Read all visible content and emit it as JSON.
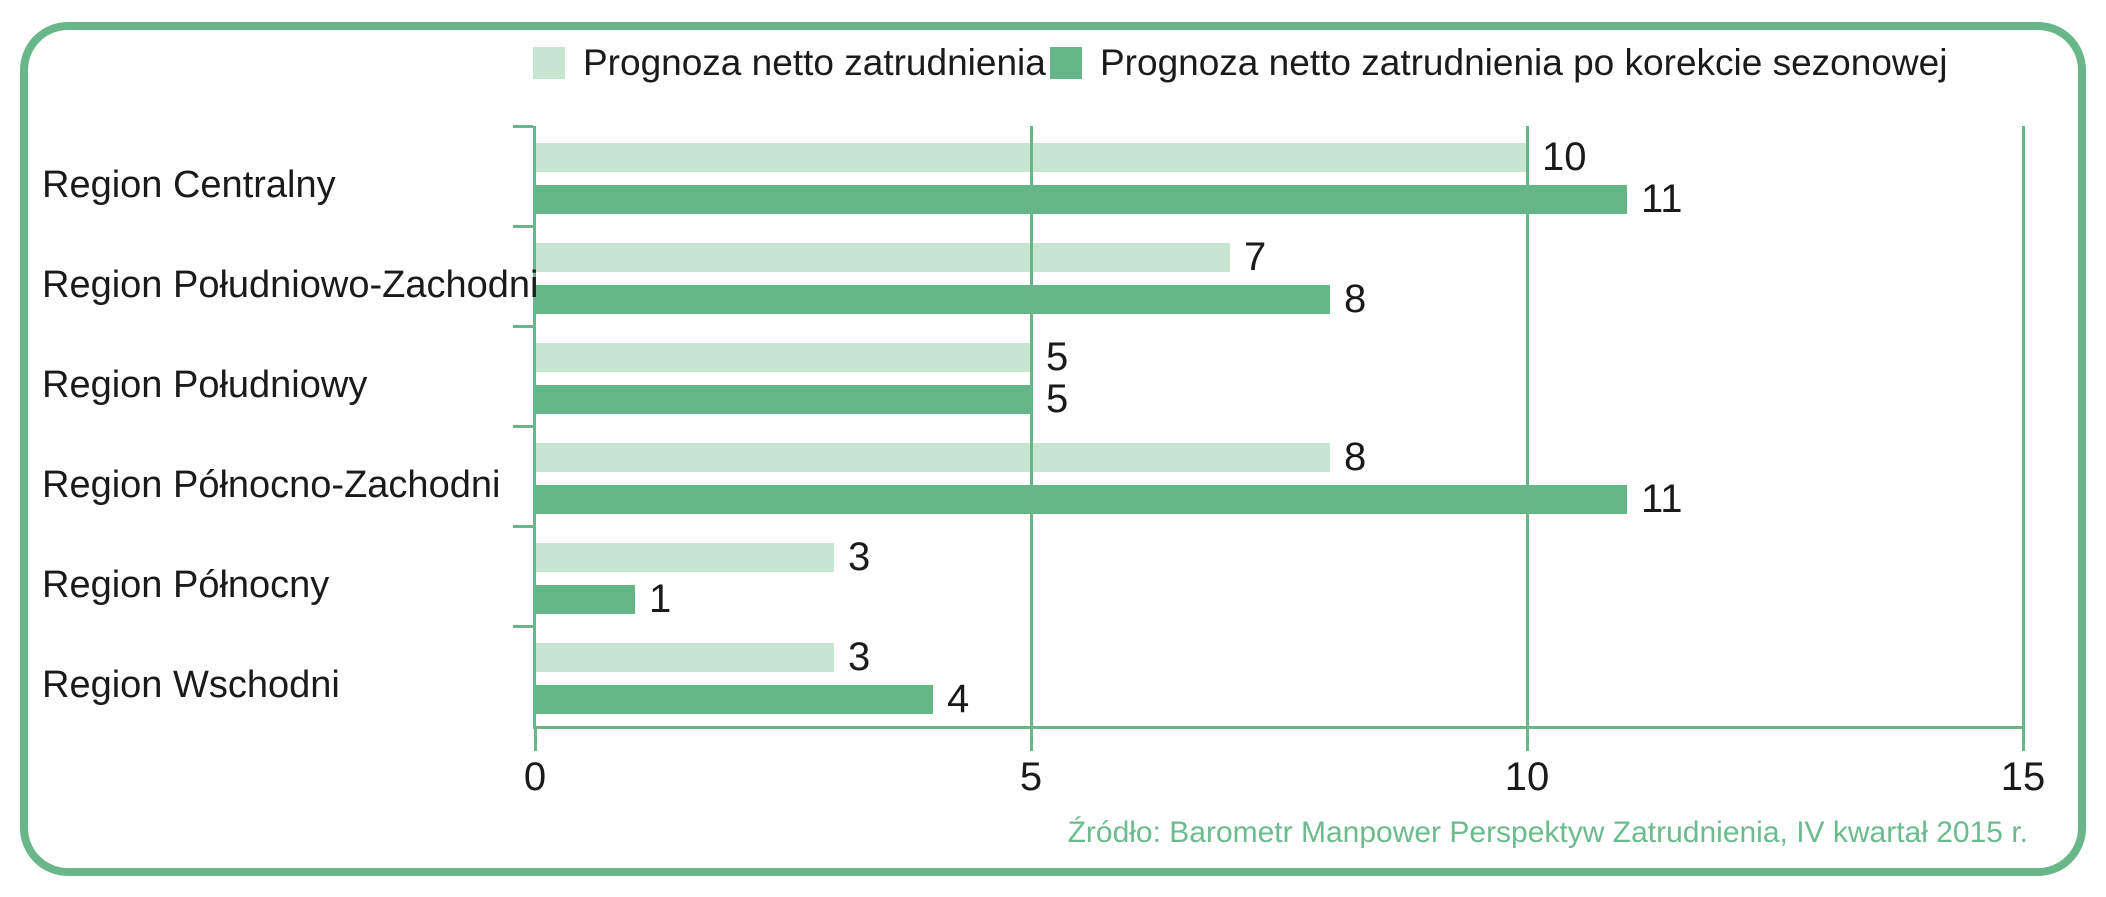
{
  "colors": {
    "light_series": "#c6e6d1",
    "dark_series": "#66b787",
    "line": "#68b689",
    "text": "#1a1a1a",
    "source": "#6cbb8f"
  },
  "legend": {
    "items": [
      {
        "label": "Prognoza netto zatrudnienia",
        "color": "#c6e6d1"
      },
      {
        "label": "Prognoza netto zatrudnienia po korekcie sezonowej",
        "color": "#66b787"
      }
    ]
  },
  "chart_data": {
    "type": "bar",
    "orientation": "horizontal",
    "categories": [
      "Region Centralny",
      "Region Południowo-Zachodni",
      "Region Południowy",
      "Region Północno-Zachodni",
      "Region Północny",
      "Region Wschodni"
    ],
    "series": [
      {
        "name": "Prognoza netto zatrudnienia",
        "color": "#c6e6d1",
        "values": [
          10,
          7,
          5,
          8,
          3,
          3
        ]
      },
      {
        "name": "Prognoza netto zatrudnienia po korekcie sezonowej",
        "color": "#66b787",
        "values": [
          11,
          8,
          5,
          11,
          1,
          4
        ]
      }
    ],
    "xlim": [
      0,
      15
    ],
    "xticks": [
      0,
      5,
      10,
      15
    ],
    "grid": true,
    "data_labels": true,
    "legend_position": "top"
  },
  "source": {
    "text": "Źródło: Barometr Manpower Perspektyw Zatrudnienia, IV kwartał 2015 r."
  }
}
